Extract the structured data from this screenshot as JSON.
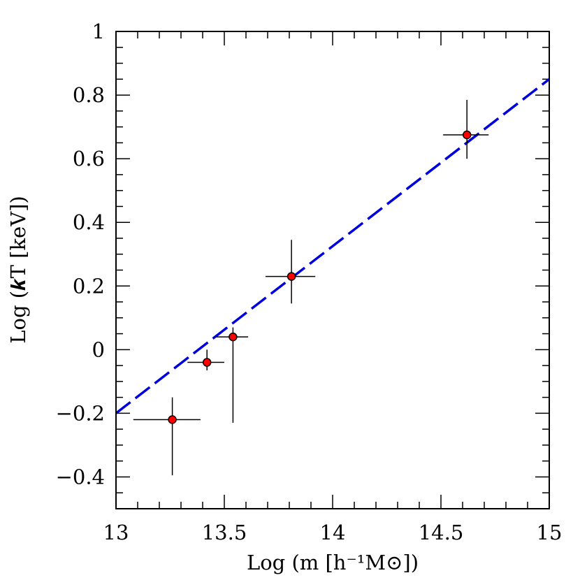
{
  "chart_data": {
    "type": "scatter",
    "xlabel": "Log (m [h⁻¹M⊙])",
    "ylabel": "Log (𝒌T [keV])",
    "xlim": [
      13,
      15
    ],
    "ylim": [
      -0.5,
      1
    ],
    "grid": false,
    "x_ticks": [
      13,
      13.5,
      14,
      14.5,
      15
    ],
    "x_tick_labels": [
      "13",
      "13.5",
      "14",
      "14.5",
      "15"
    ],
    "y_ticks": [
      -0.4,
      -0.2,
      0,
      0.2,
      0.4,
      0.6,
      0.8,
      1
    ],
    "y_tick_labels": [
      "−0.4",
      "−0.2",
      "0",
      "0.2",
      "0.4",
      "0.6",
      "0.8",
      "1"
    ],
    "points": [
      {
        "x": 13.26,
        "y": -0.22,
        "x_err_low": 13.08,
        "x_err_high": 13.39,
        "y_err_low": -0.395,
        "y_err_high": -0.15
      },
      {
        "x": 13.42,
        "y": -0.04,
        "x_err_low": 13.33,
        "x_err_high": 13.5,
        "y_err_low": -0.065,
        "y_err_high": 0.0
      },
      {
        "x": 13.54,
        "y": 0.04,
        "x_err_low": 13.46,
        "x_err_high": 13.61,
        "y_err_low": -0.23,
        "y_err_high": 0.07
      },
      {
        "x": 13.81,
        "y": 0.23,
        "x_err_low": 13.69,
        "x_err_high": 13.92,
        "y_err_low": 0.145,
        "y_err_high": 0.345
      },
      {
        "x": 14.62,
        "y": 0.675,
        "x_err_low": 14.51,
        "x_err_high": 14.72,
        "y_err_low": 0.6,
        "y_err_high": 0.785
      }
    ],
    "fit_line": {
      "x": [
        13,
        15
      ],
      "y": [
        -0.2,
        0.85
      ],
      "style": "dashed"
    },
    "colors": {
      "point_fill": "#ff0000",
      "fit_line": "#0000dd",
      "axes": "#000000"
    }
  }
}
